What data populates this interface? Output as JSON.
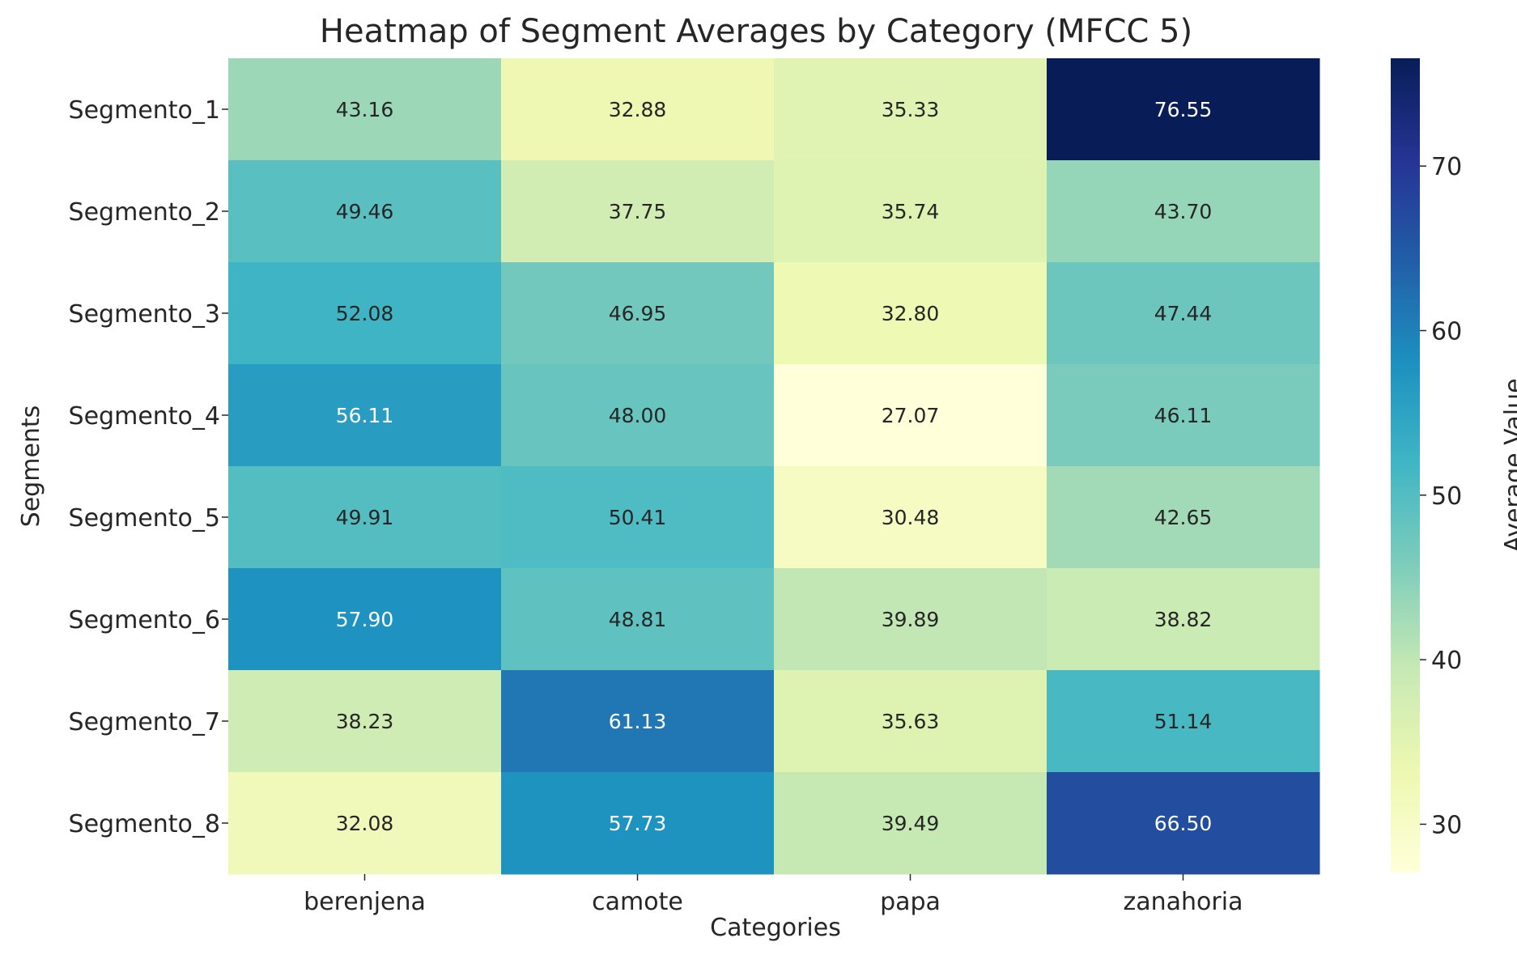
{
  "chart_data": {
    "type": "heatmap",
    "title": "Heatmap of Segment Averages by Category (MFCC 5)",
    "xlabel": "Categories",
    "ylabel": "Segments",
    "colorbar_label": "Average Value",
    "x_categories": [
      "berenjena",
      "camote",
      "papa",
      "zanahoria"
    ],
    "y_categories": [
      "Segmento_1",
      "Segmento_2",
      "Segmento_3",
      "Segmento_4",
      "Segmento_5",
      "Segmento_6",
      "Segmento_7",
      "Segmento_8"
    ],
    "values": [
      [
        43.16,
        32.88,
        35.33,
        76.55
      ],
      [
        49.46,
        37.75,
        35.74,
        43.7
      ],
      [
        52.08,
        46.95,
        32.8,
        47.44
      ],
      [
        56.11,
        48.0,
        27.07,
        46.11
      ],
      [
        49.91,
        50.41,
        30.48,
        42.65
      ],
      [
        57.9,
        48.81,
        39.89,
        38.82
      ],
      [
        38.23,
        61.13,
        35.63,
        51.14
      ],
      [
        32.08,
        57.73,
        39.49,
        66.5
      ]
    ],
    "value_labels": [
      [
        "43.16",
        "32.88",
        "35.33",
        "76.55"
      ],
      [
        "49.46",
        "37.75",
        "35.74",
        "43.70"
      ],
      [
        "52.08",
        "46.95",
        "32.80",
        "47.44"
      ],
      [
        "56.11",
        "48.00",
        "27.07",
        "46.11"
      ],
      [
        "49.91",
        "50.41",
        "30.48",
        "42.65"
      ],
      [
        "57.90",
        "48.81",
        "39.89",
        "38.82"
      ],
      [
        "38.23",
        "61.13",
        "35.63",
        "51.14"
      ],
      [
        "32.08",
        "57.73",
        "39.49",
        "66.50"
      ]
    ],
    "colorbar_range": [
      27.07,
      76.55
    ],
    "colorbar_ticks": [
      30,
      40,
      50,
      60,
      70
    ],
    "colormap": "YlGnBu",
    "colormap_stops": [
      "#ffffd9",
      "#edf8b1",
      "#c7e9b4",
      "#7fcdbb",
      "#41b6c4",
      "#1d91c0",
      "#225ea8",
      "#253494",
      "#081d58"
    ],
    "dark_text_color": "#262626",
    "light_text_color": "#ffffff"
  }
}
